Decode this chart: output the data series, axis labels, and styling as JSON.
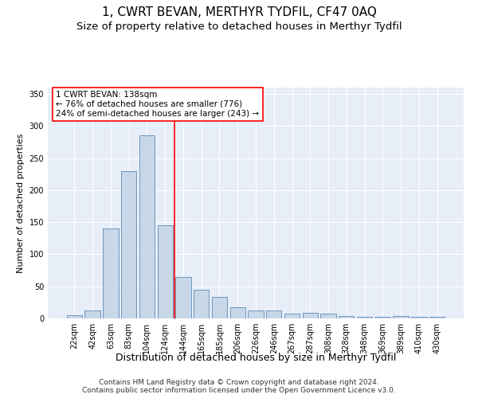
{
  "title": "1, CWRT BEVAN, MERTHYR TYDFIL, CF47 0AQ",
  "subtitle": "Size of property relative to detached houses in Merthyr Tydfil",
  "xlabel": "Distribution of detached houses by size in Merthyr Tydfil",
  "ylabel": "Number of detached properties",
  "footer": "Contains HM Land Registry data © Crown copyright and database right 2024.\nContains public sector information licensed under the Open Government Licence v3.0.",
  "categories": [
    "22sqm",
    "42sqm",
    "63sqm",
    "83sqm",
    "104sqm",
    "124sqm",
    "144sqm",
    "165sqm",
    "185sqm",
    "206sqm",
    "226sqm",
    "246sqm",
    "267sqm",
    "287sqm",
    "308sqm",
    "328sqm",
    "348sqm",
    "369sqm",
    "389sqm",
    "410sqm",
    "430sqm"
  ],
  "values": [
    5,
    12,
    140,
    230,
    285,
    145,
    65,
    45,
    33,
    17,
    12,
    12,
    8,
    9,
    7,
    4,
    3,
    3,
    4,
    2,
    2
  ],
  "bar_color": "#c8d8e8",
  "bar_edge_color": "#5a8ab5",
  "vline_x": 5.5,
  "vline_color": "red",
  "annotation_text": "1 CWRT BEVAN: 138sqm\n← 76% of detached houses are smaller (776)\n24% of semi-detached houses are larger (243) →",
  "annotation_box_color": "white",
  "annotation_box_edge": "red",
  "ylim": [
    0,
    360
  ],
  "yticks": [
    0,
    50,
    100,
    150,
    200,
    250,
    300,
    350
  ],
  "plot_bg_color": "#e8eef8",
  "grid_color": "white",
  "title_fontsize": 11,
  "subtitle_fontsize": 9.5,
  "xlabel_fontsize": 9,
  "ylabel_fontsize": 8,
  "tick_fontsize": 7,
  "annotation_fontsize": 7.5,
  "footer_fontsize": 6.5
}
